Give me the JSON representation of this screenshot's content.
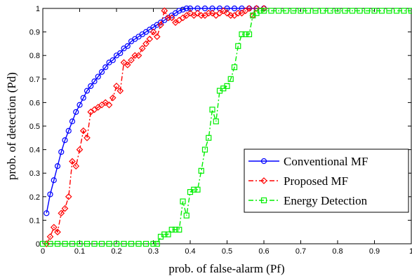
{
  "chart_data": {
    "type": "line",
    "xlabel": "prob. of false-alarm (Pf)",
    "ylabel": "prob. of detection (Pd)",
    "xlim": [
      0,
      1
    ],
    "ylim": [
      0,
      1
    ],
    "xticks": [
      "0",
      "0.1",
      "0.2",
      "0.3",
      "0.4",
      "0.5",
      "0.6",
      "0.7",
      "0.8",
      "0.9",
      "1"
    ],
    "yticks": [
      "0",
      "0.1",
      "0.2",
      "0.3",
      "0.4",
      "0.5",
      "0.6",
      "0.7",
      "0.8",
      "0.9",
      "1"
    ],
    "grid": false,
    "legend_position": "bottom-right",
    "series": [
      {
        "name": "Conventional MF",
        "color": "#0000ff",
        "line_style": "solid",
        "marker": "circle",
        "x": [
          0.01,
          0.02,
          0.03,
          0.04,
          0.05,
          0.06,
          0.07,
          0.08,
          0.09,
          0.1,
          0.11,
          0.12,
          0.13,
          0.14,
          0.15,
          0.16,
          0.17,
          0.18,
          0.19,
          0.2,
          0.21,
          0.22,
          0.23,
          0.24,
          0.25,
          0.26,
          0.27,
          0.28,
          0.29,
          0.3,
          0.31,
          0.32,
          0.33,
          0.34,
          0.35,
          0.36,
          0.37,
          0.38,
          0.39,
          0.4,
          0.42,
          0.44,
          0.46,
          0.48,
          0.5,
          0.52,
          0.54,
          0.56,
          0.58,
          0.6
        ],
        "y": [
          0.13,
          0.21,
          0.27,
          0.33,
          0.39,
          0.44,
          0.48,
          0.52,
          0.56,
          0.59,
          0.62,
          0.65,
          0.67,
          0.69,
          0.71,
          0.73,
          0.75,
          0.77,
          0.78,
          0.8,
          0.81,
          0.83,
          0.84,
          0.86,
          0.87,
          0.88,
          0.89,
          0.9,
          0.91,
          0.92,
          0.93,
          0.94,
          0.95,
          0.96,
          0.97,
          0.98,
          0.99,
          0.995,
          1.0,
          1.0,
          1.0,
          1.0,
          1.0,
          1.0,
          1.0,
          1.0,
          1.0,
          1.0,
          1.0,
          1.0
        ]
      },
      {
        "name": "Proposed MF",
        "color": "#ff0000",
        "line_style": "dash-dot",
        "marker": "diamond",
        "x": [
          0.01,
          0.02,
          0.03,
          0.04,
          0.05,
          0.06,
          0.07,
          0.08,
          0.09,
          0.1,
          0.11,
          0.12,
          0.13,
          0.14,
          0.15,
          0.16,
          0.17,
          0.18,
          0.19,
          0.2,
          0.21,
          0.22,
          0.23,
          0.24,
          0.25,
          0.26,
          0.27,
          0.28,
          0.29,
          0.3,
          0.31,
          0.32,
          0.33,
          0.34,
          0.35,
          0.36,
          0.37,
          0.38,
          0.39,
          0.4,
          0.41,
          0.42,
          0.43,
          0.44,
          0.45,
          0.46,
          0.47,
          0.48,
          0.49,
          0.5,
          0.51,
          0.52,
          0.53,
          0.54,
          0.55,
          0.56,
          0.57,
          0.58,
          0.6
        ],
        "y": [
          0.0,
          0.03,
          0.07,
          0.05,
          0.13,
          0.15,
          0.2,
          0.35,
          0.33,
          0.4,
          0.48,
          0.45,
          0.56,
          0.57,
          0.58,
          0.59,
          0.6,
          0.59,
          0.62,
          0.67,
          0.65,
          0.77,
          0.76,
          0.78,
          0.8,
          0.8,
          0.83,
          0.85,
          0.87,
          0.9,
          0.88,
          0.93,
          0.99,
          0.96,
          0.96,
          0.94,
          0.95,
          0.96,
          0.97,
          0.98,
          0.97,
          0.98,
          0.97,
          0.97,
          0.98,
          0.98,
          0.97,
          0.98,
          0.99,
          0.98,
          0.97,
          0.97,
          0.98,
          0.98,
          0.99,
          1.0,
          0.97,
          1.0,
          1.0
        ]
      },
      {
        "name": "Energy Detection",
        "color": "#00ee00",
        "line_style": "dash-dot",
        "marker": "square",
        "x": [
          0.0,
          0.02,
          0.04,
          0.06,
          0.08,
          0.1,
          0.12,
          0.14,
          0.16,
          0.18,
          0.2,
          0.22,
          0.24,
          0.26,
          0.28,
          0.3,
          0.31,
          0.32,
          0.33,
          0.34,
          0.35,
          0.36,
          0.37,
          0.38,
          0.39,
          0.4,
          0.41,
          0.42,
          0.43,
          0.44,
          0.45,
          0.46,
          0.47,
          0.48,
          0.49,
          0.5,
          0.51,
          0.52,
          0.53,
          0.54,
          0.55,
          0.56,
          0.57,
          0.58,
          0.59,
          0.6,
          0.62,
          0.64,
          0.66,
          0.68,
          0.7,
          0.72,
          0.74,
          0.76,
          0.78,
          0.8,
          0.82,
          0.84,
          0.86,
          0.88,
          0.9,
          0.92,
          0.94,
          0.96,
          0.98,
          1.0
        ],
        "y": [
          0.0,
          0.0,
          0.0,
          0.0,
          0.0,
          0.0,
          0.0,
          0.0,
          0.0,
          0.0,
          0.0,
          0.0,
          0.0,
          0.0,
          0.0,
          0.0,
          0.0,
          0.03,
          0.04,
          0.04,
          0.06,
          0.06,
          0.06,
          0.18,
          0.12,
          0.22,
          0.23,
          0.23,
          0.31,
          0.4,
          0.45,
          0.57,
          0.52,
          0.65,
          0.66,
          0.67,
          0.7,
          0.75,
          0.84,
          0.89,
          0.89,
          0.89,
          0.97,
          0.98,
          0.99,
          0.99,
          0.99,
          0.99,
          0.99,
          0.99,
          0.99,
          0.99,
          0.99,
          0.99,
          0.99,
          0.99,
          0.99,
          0.99,
          0.99,
          0.99,
          0.99,
          0.99,
          0.99,
          0.99,
          0.99,
          0.99
        ]
      }
    ]
  }
}
